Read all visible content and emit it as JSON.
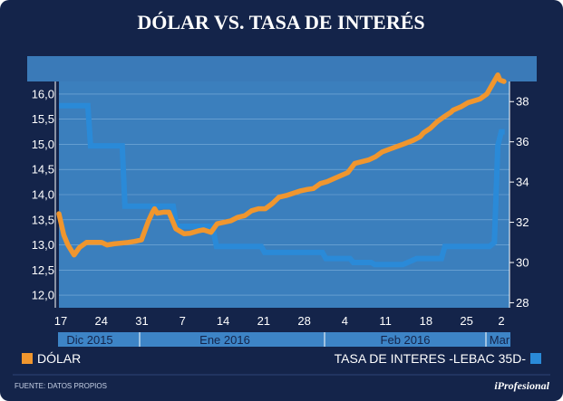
{
  "colors": {
    "background": "#14244a",
    "plot_bg": "#3b7fbd",
    "header_band": "#3a7ab8",
    "dolar": "#f0962e",
    "tasa": "#2a8ad8",
    "month_bar": "#3d84c6"
  },
  "chart_data": {
    "type": "line",
    "title": "DÓLAR VS. TASA DE INTERÉS",
    "x_ticks": [
      "17",
      "24",
      "31",
      "7",
      "14",
      "21",
      "28",
      "4",
      "11",
      "18",
      "25",
      "2"
    ],
    "months": [
      "Dic 2015",
      "Ene 2016",
      "Feb 2016",
      "Mar"
    ],
    "y_left": {
      "range": [
        11.75,
        16.25
      ],
      "ticks": [
        "12,0",
        "12,5",
        "13,0",
        "13,5",
        "14,0",
        "14,5",
        "15,0",
        "15,5",
        "16,0"
      ]
    },
    "y_right": {
      "range": [
        27.75,
        39.0
      ],
      "ticks": [
        "28",
        "30",
        "32",
        "34",
        "36",
        "38"
      ]
    },
    "series": [
      {
        "name": "DÓLAR",
        "axis": "left",
        "x": [
          0,
          0.7,
          1.3,
          2.2,
          3.0,
          4.0,
          5.6,
          6.2,
          7.0,
          8.0,
          10.0,
          11.0,
          12.0,
          13.0,
          13.6,
          13.9,
          14.3,
          15.2,
          16.0,
          17.0,
          18.2,
          19.0,
          20.3,
          21.0,
          22.1,
          23.0,
          25.0,
          26.0,
          27.0,
          28.0,
          29.0,
          30.0,
          31.0,
          32.0,
          33.0,
          35.0,
          36.0,
          37.0,
          38.0,
          39.0,
          40.0,
          42.0,
          43.0,
          45.0,
          46.0,
          47.0,
          49.0,
          50.0,
          51.5,
          52.5,
          53.0,
          54.0,
          55.0,
          56.0,
          57.0,
          57.3,
          58.0,
          58.5,
          59.5,
          60.0,
          61.2,
          62.2,
          63.8,
          64.1,
          64.7
        ],
        "values": [
          13.62,
          13.2,
          13.0,
          12.8,
          12.95,
          13.05,
          13.05,
          13.05,
          13.0,
          13.02,
          13.05,
          13.07,
          13.1,
          13.47,
          13.65,
          13.72,
          13.63,
          13.65,
          13.65,
          13.32,
          13.22,
          13.23,
          13.28,
          13.3,
          13.25,
          13.42,
          13.48,
          13.55,
          13.58,
          13.68,
          13.72,
          13.72,
          13.82,
          13.95,
          13.98,
          14.07,
          14.1,
          14.12,
          14.22,
          14.26,
          14.32,
          14.44,
          14.62,
          14.69,
          14.75,
          14.85,
          14.95,
          15.0,
          15.08,
          15.15,
          15.23,
          15.32,
          15.45,
          15.55,
          15.64,
          15.68,
          15.72,
          15.75,
          15.83,
          15.85,
          15.9,
          16.0,
          16.38,
          16.28,
          16.25
        ]
      },
      {
        "name": "TASA DE INTERES -LEBAC 35D-",
        "axis": "right",
        "x": [
          0,
          4.2,
          4.6,
          9.2,
          9.6,
          16.6,
          17.1,
          22.3,
          22.9,
          29.4,
          29.9,
          38.3,
          38.8,
          42.3,
          42.8,
          45.4,
          45.9,
          50.0,
          52.0,
          55.6,
          56.1,
          62.6,
          63.3,
          63.8,
          64.3,
          64.8
        ],
        "values": [
          37.8,
          37.8,
          35.8,
          35.8,
          32.8,
          32.8,
          31.8,
          31.8,
          30.8,
          30.8,
          30.5,
          30.5,
          30.2,
          30.2,
          30.0,
          30.0,
          29.9,
          29.9,
          30.2,
          30.2,
          30.8,
          30.8,
          31.0,
          35.8,
          36.5,
          36.5
        ]
      }
    ],
    "source": "FUENTE: DATOS PROPIOS",
    "brand": "iProfesional"
  }
}
